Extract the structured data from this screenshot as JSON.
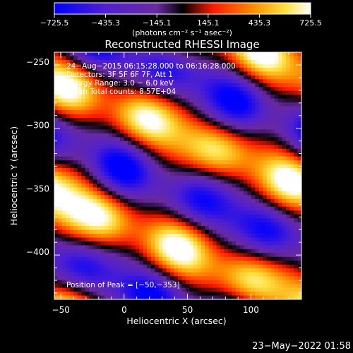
{
  "colors": {
    "background": "#000000",
    "foreground": "#ffffff",
    "colormap_stops": [
      "#0000ff",
      "#7a33b8",
      "#000000",
      "#ff1a00",
      "#ff8a00",
      "#ffff66",
      "#ffffff"
    ]
  },
  "colorbar": {
    "tick_labels": [
      "−725.5",
      "−435.3",
      "−145.1",
      "145.1",
      "435.3",
      "725.5"
    ],
    "tick_values": [
      -725.5,
      -435.3,
      -145.1,
      145.1,
      435.3,
      725.5
    ],
    "range": [
      -725.5,
      725.5
    ],
    "unit_label": "(photons cm⁻² s⁻¹ asec⁻²)"
  },
  "info_lines": {
    "time": "24−Aug−2015 06:15:28.000 to 06:16:28.000",
    "detectors": "Detectors: 3F 5F 6F 7F, Att 1",
    "energy": "Energy Range: 3.0 − 6.0 keV",
    "counts": "Clean     Total counts: 8.57E+04"
  },
  "peak_label": "Position of Peak = [−50,−353]",
  "footer": {
    "date": "23−May−2022 01:58"
  },
  "chart_data": {
    "type": "heatmap",
    "title": "Reconstructed RHESSI Image",
    "xlabel": "Heliocentric X (arcsec)",
    "ylabel": "Heliocentric Y (arcsec)",
    "xlim": [
      -55,
      140
    ],
    "ylim": [
      -435,
      -240
    ],
    "x_ticks": [
      -50,
      0,
      50,
      100
    ],
    "x_tick_labels": [
      "−50",
      "0",
      "50",
      "100"
    ],
    "y_ticks": [
      -250,
      -300,
      -350,
      -400
    ],
    "y_tick_labels": [
      "−250",
      "−300",
      "−350",
      "−400"
    ],
    "value_range": [
      -725.5,
      725.5
    ],
    "peak": {
      "x": -50,
      "y": -353,
      "value": 725.5
    },
    "pattern": "diagonal fringe bands of alternating positive and negative flux running from upper-left to lower-right"
  }
}
